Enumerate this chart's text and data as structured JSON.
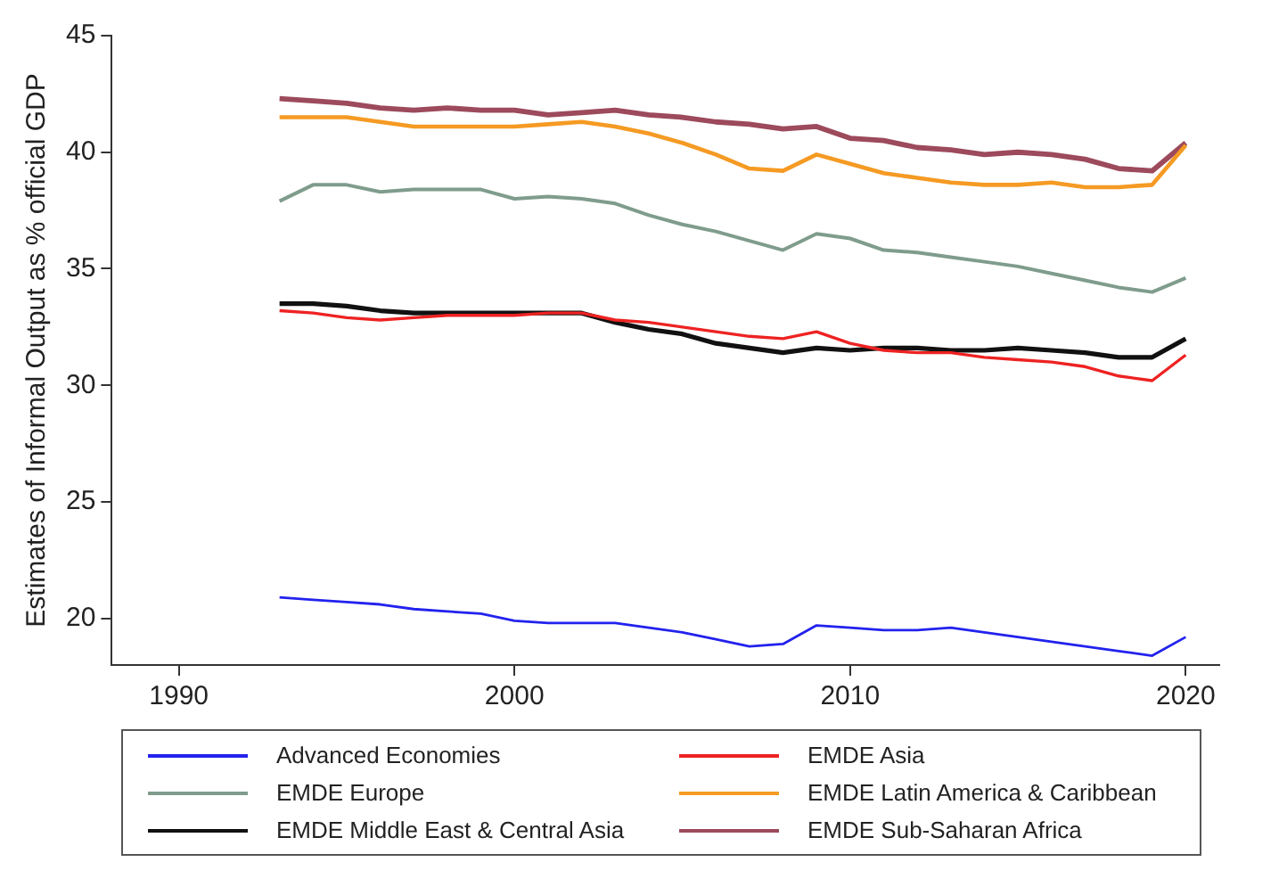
{
  "chart_data": {
    "type": "line",
    "ylabel": "Estimates of Informal Output as % official GDP",
    "x": [
      1993,
      1994,
      1995,
      1996,
      1997,
      1998,
      1999,
      2000,
      2001,
      2002,
      2003,
      2004,
      2005,
      2006,
      2007,
      2008,
      2009,
      2010,
      2011,
      2012,
      2013,
      2014,
      2015,
      2016,
      2017,
      2018,
      2019,
      2020
    ],
    "xlim": [
      1988,
      2021
    ],
    "xticks": [
      1990,
      2000,
      2010,
      2020
    ],
    "ylim": [
      18,
      45
    ],
    "yticks": [
      20,
      25,
      30,
      35,
      40,
      45
    ],
    "grid": false,
    "legend": "bottom",
    "marker": "none",
    "line_style": "solid",
    "series": [
      {
        "name": "Advanced Economies",
        "color": "#2222ee",
        "values": [
          20.9,
          20.8,
          20.7,
          20.6,
          20.4,
          20.3,
          20.2,
          19.9,
          19.8,
          19.8,
          19.8,
          19.6,
          19.4,
          19.1,
          18.8,
          18.9,
          19.7,
          19.6,
          19.5,
          19.5,
          19.6,
          19.4,
          19.2,
          19.0,
          18.8,
          18.6,
          18.4,
          19.2
        ]
      },
      {
        "name": "EMDE Asia",
        "color": "#ee2222",
        "values": [
          33.2,
          33.1,
          32.9,
          32.8,
          32.9,
          33.0,
          33.0,
          33.0,
          33.1,
          33.1,
          32.8,
          32.7,
          32.5,
          32.3,
          32.1,
          32.0,
          32.3,
          31.8,
          31.5,
          31.4,
          31.4,
          31.2,
          31.1,
          31.0,
          30.8,
          30.4,
          30.2,
          31.3
        ]
      },
      {
        "name": "EMDE Europe",
        "color": "#7f9c8c",
        "values": [
          37.9,
          38.6,
          38.6,
          38.3,
          38.4,
          38.4,
          38.4,
          38.0,
          38.1,
          38.0,
          37.8,
          37.3,
          36.9,
          36.6,
          36.2,
          35.8,
          36.5,
          36.3,
          35.8,
          35.7,
          35.5,
          35.3,
          35.1,
          34.8,
          34.5,
          34.2,
          34.0,
          34.6
        ]
      },
      {
        "name": "EMDE Latin America & Caribbean",
        "color": "#f59a23",
        "values": [
          41.5,
          41.5,
          41.5,
          41.3,
          41.1,
          41.1,
          41.1,
          41.1,
          41.2,
          41.3,
          41.1,
          40.8,
          40.4,
          39.9,
          39.3,
          39.2,
          39.9,
          39.5,
          39.1,
          38.9,
          38.7,
          38.6,
          38.6,
          38.7,
          38.5,
          38.5,
          38.6,
          40.3
        ]
      },
      {
        "name": "EMDE Middle East & Central Asia",
        "color": "#111111",
        "values": [
          33.5,
          33.5,
          33.4,
          33.2,
          33.1,
          33.1,
          33.1,
          33.1,
          33.1,
          33.1,
          32.7,
          32.4,
          32.2,
          31.8,
          31.6,
          31.4,
          31.6,
          31.5,
          31.6,
          31.6,
          31.5,
          31.5,
          31.6,
          31.5,
          31.4,
          31.2,
          31.2,
          32.0
        ]
      },
      {
        "name": "EMDE Sub-Saharan Africa",
        "color": "#9c4a5c",
        "values": [
          42.3,
          42.2,
          42.1,
          41.9,
          41.8,
          41.9,
          41.8,
          41.8,
          41.6,
          41.7,
          41.8,
          41.6,
          41.5,
          41.3,
          41.2,
          41.0,
          41.1,
          40.6,
          40.5,
          40.2,
          40.1,
          39.9,
          40.0,
          39.9,
          39.7,
          39.3,
          39.2,
          40.4
        ]
      }
    ]
  }
}
